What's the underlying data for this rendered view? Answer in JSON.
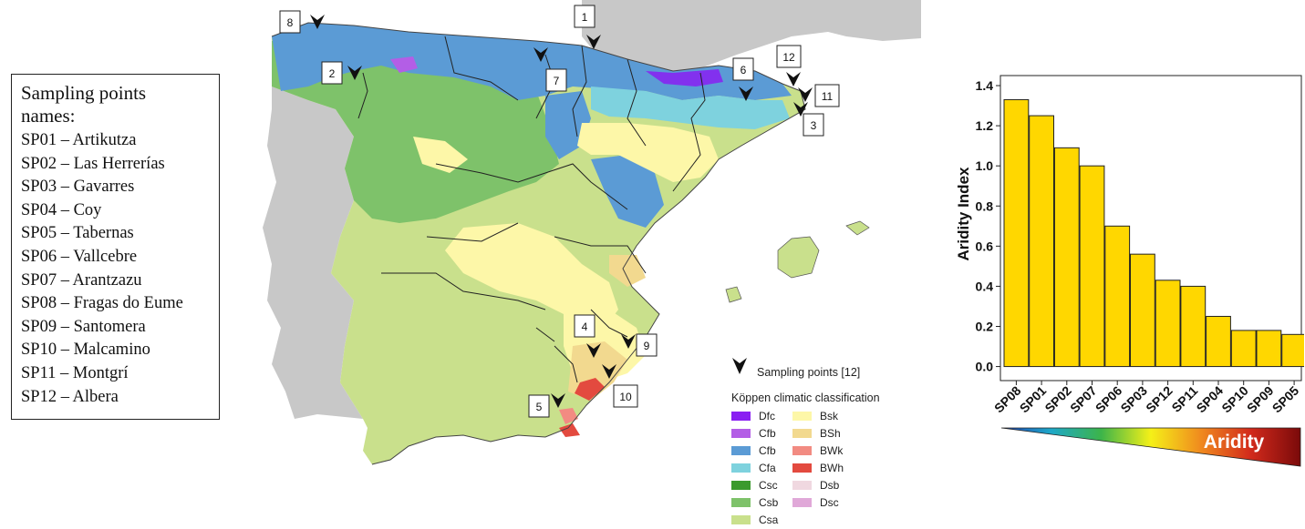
{
  "names_box": {
    "title_line1": "Sampling points",
    "title_line2": "names:",
    "items": [
      "SP01 – Artikutza",
      "SP02 – Las Herrerías",
      "SP03 – Gavarres",
      "SP04 – Coy",
      "SP05 – Tabernas",
      "SP06 – Vallcebre",
      "SP07 – Arantzazu",
      "SP08 – Fragas do Eume",
      "SP09 – Santomera",
      "SP10 – Malcamino",
      "SP11 – Montgrí",
      "SP12 – Albera"
    ]
  },
  "map": {
    "point_labels": [
      "1",
      "2",
      "3",
      "4",
      "5",
      "6",
      "7",
      "8",
      "9",
      "10",
      "11",
      "12"
    ],
    "colors": {
      "sea": "#ffffff",
      "portugal_france": "#c8c8c8",
      "Dfc": "#8a1ff2",
      "Cfb_purple": "#b35ee6",
      "Cfb": "#5b9bd5",
      "Cfa": "#7ed2de",
      "Csc": "#3b9a2d",
      "Csb": "#7ec26a",
      "Csa": "#c9e08c",
      "Bsk": "#fdf7a8",
      "BSh": "#f2d98f",
      "BWk": "#f28b82",
      "BWh": "#e34a3f",
      "Dsb": "#f0d8e0",
      "Dsc": "#e0a8d8"
    }
  },
  "legend": {
    "sampling_label": "Sampling points [12]",
    "koppen_title": "Köppen climatic classification",
    "items": [
      {
        "label": "Dfc",
        "color": "#8a1ff2"
      },
      {
        "label": "Cfb",
        "color": "#b35ee6"
      },
      {
        "label": "Cfb",
        "color": "#5b9bd5"
      },
      {
        "label": "Cfa",
        "color": "#7ed2de"
      },
      {
        "label": "Csc",
        "color": "#3b9a2d"
      },
      {
        "label": "Csb",
        "color": "#7ec26a"
      },
      {
        "label": "Csa",
        "color": "#c9e08c"
      },
      {
        "label": "Bsk",
        "color": "#fdf7a8"
      },
      {
        "label": "BSh",
        "color": "#f2d98f"
      },
      {
        "label": "BWk",
        "color": "#f28b82"
      },
      {
        "label": "BWh",
        "color": "#e34a3f"
      },
      {
        "label": "Dsb",
        "color": "#f0d8e0"
      },
      {
        "label": "Dsc",
        "color": "#e0a8d8"
      }
    ]
  },
  "chart_data": {
    "type": "bar",
    "categories": [
      "SP08",
      "SP01",
      "SP02",
      "SP07",
      "SP06",
      "SP03",
      "SP12",
      "SP11",
      "SP04",
      "SP10",
      "SP09",
      "SP05"
    ],
    "values": [
      1.33,
      1.25,
      1.09,
      1.0,
      0.7,
      0.56,
      0.43,
      0.4,
      0.25,
      0.18,
      0.18,
      0.16
    ],
    "ylabel": "Aridity Index",
    "xlabel": "",
    "ylim": [
      -0.07,
      1.45
    ],
    "yticks": [
      "0.0",
      "0.2",
      "0.4",
      "0.6",
      "0.8",
      "1.0",
      "1.2",
      "1.4"
    ],
    "bar_color": "#ffd700",
    "grid": false
  },
  "aridity_scale": {
    "label": "Aridity",
    "gradient_colors": [
      "#1f3fb3",
      "#1ea8c8",
      "#3cb44a",
      "#f5f018",
      "#f08a1e",
      "#d22a1c",
      "#7a0a0a"
    ]
  }
}
